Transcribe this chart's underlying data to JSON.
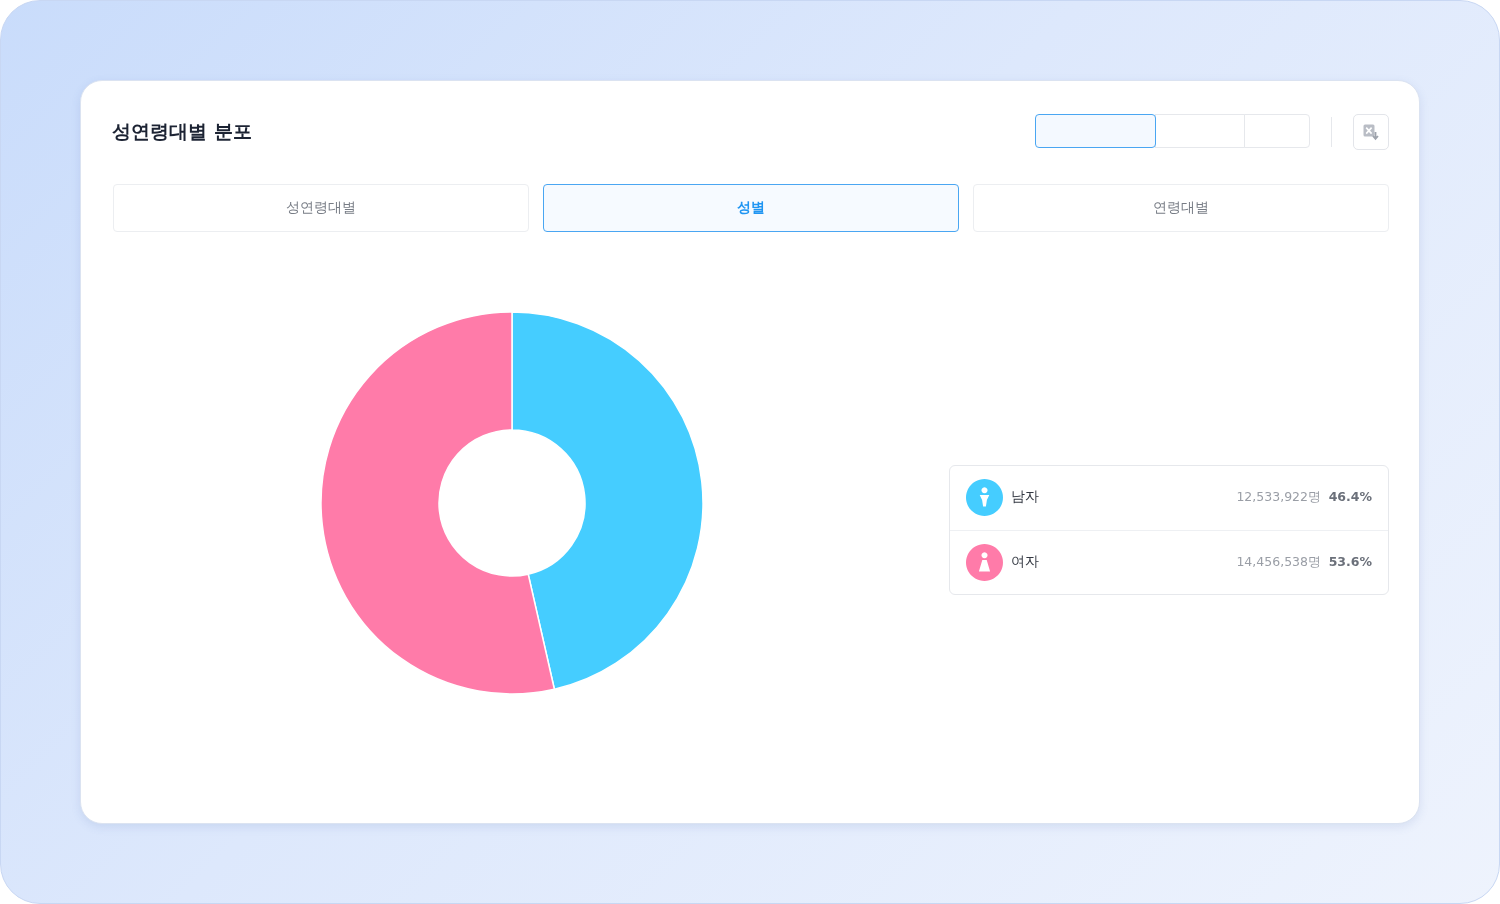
{
  "chart_data": {
    "type": "donut",
    "title": "성연령대별 분포",
    "categories": [
      "남자",
      "여자"
    ],
    "values": [
      12533922,
      14456538
    ],
    "colors": [
      "#45cdff",
      "#ff7ba9"
    ],
    "value_labels": [
      "12,533,922명 46.4%",
      "14,456,538명 53.6%"
    ],
    "legend": "right",
    "annotations": [
      "성연령대별",
      "성별",
      "연령대별"
    ]
  }
}
